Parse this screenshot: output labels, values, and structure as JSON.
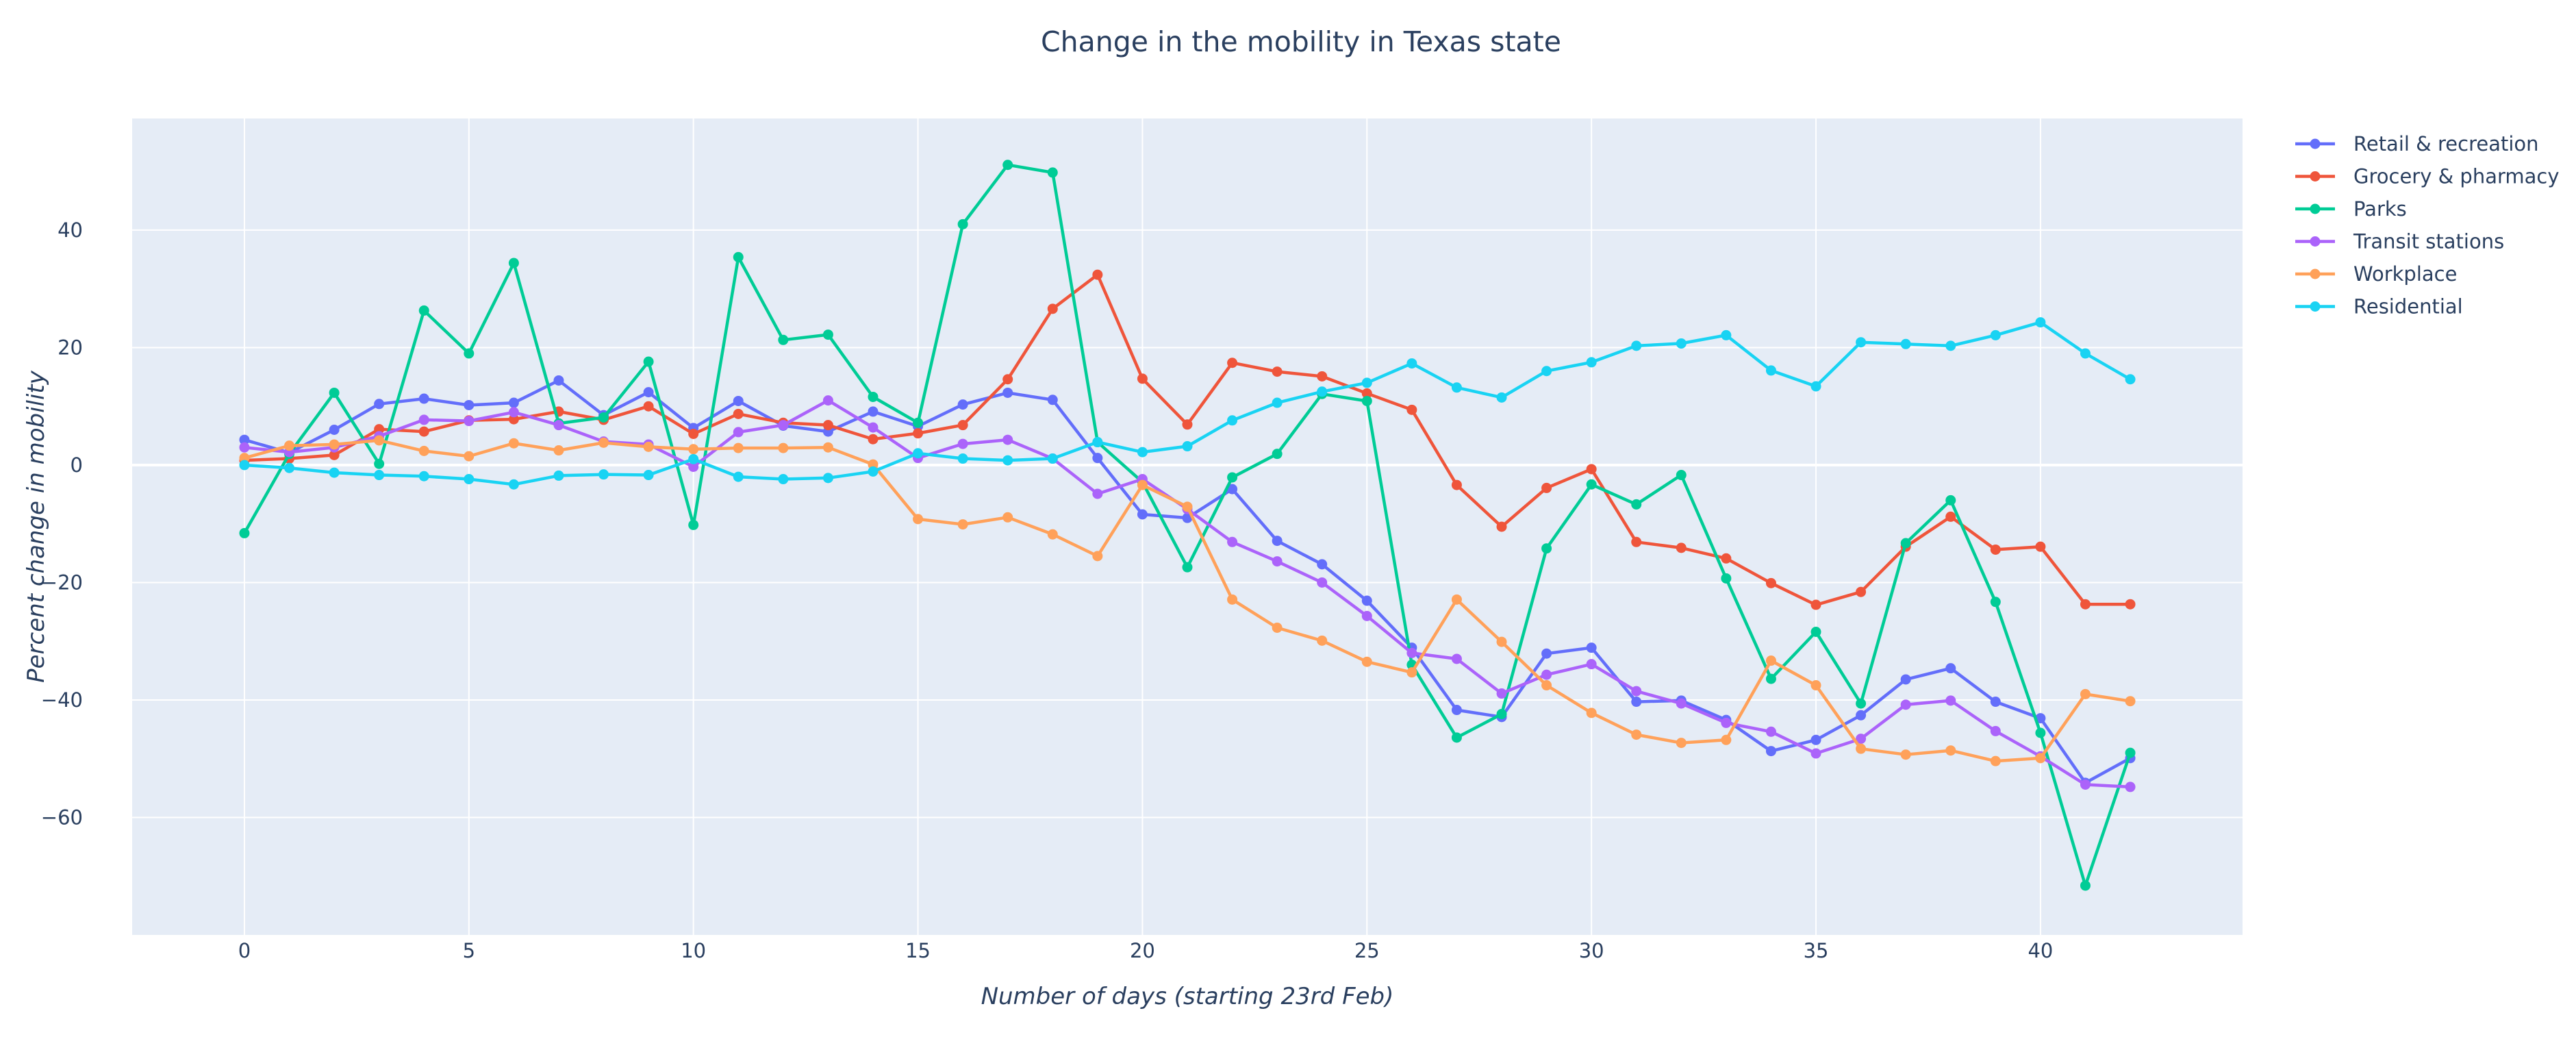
{
  "chart_data": {
    "type": "line",
    "title": "Change in the mobility in Texas state",
    "xlabel": "Number of days (starting 23rd Feb)",
    "ylabel": "Percent change in mobility",
    "xlim": [
      -2.5,
      44.5
    ],
    "ylim": [
      -80,
      59
    ],
    "xticks": [
      0,
      5,
      10,
      15,
      20,
      25,
      30,
      35,
      40
    ],
    "yticks": [
      40,
      20,
      0,
      -20,
      -40,
      -60
    ],
    "grid": true,
    "legend_position": "top-right",
    "background_color": "#e5ecf6",
    "x": [
      0,
      1,
      2,
      3,
      4,
      5,
      6,
      7,
      8,
      9,
      10,
      11,
      12,
      13,
      14,
      15,
      16,
      17,
      18,
      19,
      20,
      21,
      22,
      23,
      24,
      25,
      26,
      27,
      28,
      29,
      30,
      31,
      32,
      33,
      34,
      35,
      36,
      37,
      38,
      39,
      40,
      41,
      42
    ],
    "series": [
      {
        "name": "Retail & recreation",
        "color": "#636efa",
        "values": [
          4.3,
          2.1,
          6,
          10.4,
          11.3,
          10.2,
          10.6,
          14.4,
          8.5,
          12.4,
          6.3,
          10.9,
          6.7,
          5.7,
          9.1,
          6.6,
          10.3,
          12.3,
          11.1,
          1.2,
          -8.4,
          -9,
          -4.1,
          -12.9,
          -16.9,
          -23.1,
          -31.1,
          -41.7,
          -42.9,
          -32.1,
          -31.1,
          -40.3,
          -40.1,
          -43.4,
          -48.7,
          -46.8,
          -42.6,
          -36.5,
          -34.6,
          -40.3,
          -43.1,
          -54.1,
          -49.9
        ]
      },
      {
        "name": "Grocery & pharmacy",
        "color": "#ef553b",
        "values": [
          0.8,
          1.1,
          1.7,
          6.1,
          5.7,
          7.6,
          7.8,
          9.1,
          7.7,
          10,
          5.3,
          8.7,
          7.2,
          6.8,
          4.4,
          5.4,
          6.8,
          14.6,
          26.6,
          32.4,
          14.7,
          6.9,
          17.4,
          15.9,
          15.1,
          12.2,
          9.4,
          -3.4,
          -10.5,
          -3.9,
          -0.7,
          -13.1,
          -14.1,
          -15.9,
          -20.1,
          -23.8,
          -21.6,
          -13.9,
          -8.8,
          -14.4,
          -13.9,
          -23.7,
          -23.7
        ]
      },
      {
        "name": "Parks",
        "color": "#00cc96",
        "values": [
          -11.6,
          1.9,
          12.3,
          0.2,
          26.3,
          19,
          34.4,
          7.1,
          8.1,
          17.6,
          -10.2,
          35.4,
          21.3,
          22.2,
          11.6,
          7.2,
          41,
          51.1,
          49.8,
          3.9,
          -2.9,
          -17.4,
          -2.1,
          1.9,
          12.1,
          10.9,
          -34,
          -46.4,
          -42.4,
          -14.2,
          -3.3,
          -6.7,
          -1.7,
          -19.3,
          -36.4,
          -28.4,
          -40.6,
          -13.3,
          -6,
          -23.3,
          -45.6,
          -71.6,
          -49
        ]
      },
      {
        "name": "Transit stations",
        "color": "#ab63fa",
        "values": [
          3,
          2.2,
          3,
          4.9,
          7.7,
          7.5,
          9,
          6.8,
          4,
          3.5,
          -0.3,
          5.6,
          6.8,
          11,
          6.4,
          1.2,
          3.6,
          4.3,
          1.1,
          -4.9,
          -2.4,
          -7.5,
          -13.1,
          -16.4,
          -20,
          -25.7,
          -32,
          -33,
          -38.9,
          -35.7,
          -33.9,
          -38.5,
          -40.6,
          -43.9,
          -45.4,
          -49.1,
          -46.6,
          -40.8,
          -40.1,
          -45.3,
          -49.6,
          -54.4,
          -54.8
        ]
      },
      {
        "name": "Workplace",
        "color": "#ffa15a",
        "values": [
          1.2,
          3.3,
          3.5,
          4.2,
          2.4,
          1.5,
          3.7,
          2.5,
          3.8,
          3.1,
          2.7,
          2.9,
          2.9,
          3,
          0.1,
          -9.2,
          -10.1,
          -8.9,
          -11.8,
          -15.5,
          -3.4,
          -7.1,
          -22.9,
          -27.7,
          -29.9,
          -33.5,
          -35.3,
          -22.9,
          -30.1,
          -37.5,
          -42.2,
          -45.9,
          -47.3,
          -46.8,
          -33.3,
          -37.5,
          -48.3,
          -49.3,
          -48.6,
          -50.4,
          -49.9,
          -39,
          -40.2
        ]
      },
      {
        "name": "Residential",
        "color": "#19d3f3",
        "values": [
          0,
          -0.5,
          -1.3,
          -1.7,
          -1.9,
          -2.4,
          -3.3,
          -1.8,
          -1.6,
          -1.7,
          1,
          -2,
          -2.4,
          -2.2,
          -1.1,
          2,
          1.1,
          0.8,
          1.1,
          3.9,
          2.2,
          3.2,
          7.6,
          10.6,
          12.5,
          14,
          17.3,
          13.2,
          11.5,
          16,
          17.5,
          20.3,
          20.7,
          22.1,
          16.1,
          13.4,
          20.9,
          20.6,
          20.3,
          22.1,
          24.3,
          19,
          14.6
        ]
      }
    ]
  }
}
